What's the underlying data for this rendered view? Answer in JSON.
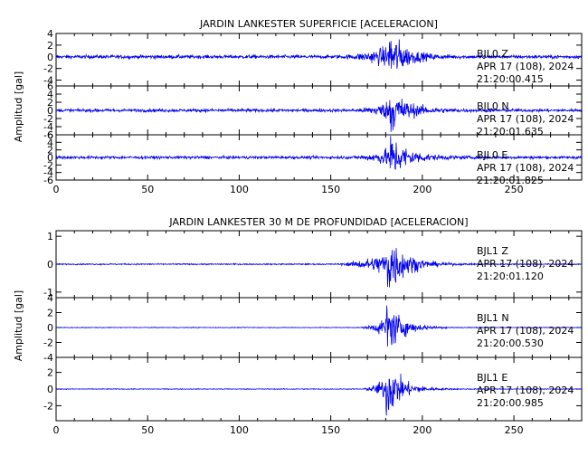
{
  "chart_data": [
    {
      "type": "line",
      "title": "JARDIN LANKESTER SUPERFICIE [ACELERACION]",
      "ylabel": "Amplitud [gal]",
      "xlabel": "",
      "xlim": [
        0,
        287
      ],
      "xticks": [
        "0",
        "50",
        "100",
        "150",
        "200",
        "250"
      ],
      "xtick_values": [
        0,
        50,
        100,
        150,
        200,
        250
      ],
      "panels": [
        {
          "name": "BJL0 Z",
          "station": "BJL0",
          "component": "Z",
          "date": "APR 17 (108), 2024",
          "time": "21:20:00.415",
          "ylim": [
            -5,
            4
          ],
          "yticks": [
            "4",
            "2",
            "0",
            "-2",
            "-4"
          ],
          "ytick_values": [
            4,
            2,
            0,
            -2,
            -4
          ],
          "noise": 0.28,
          "onset": 152,
          "peak_time": 182,
          "peak": 4.5,
          "decay": 8
        },
        {
          "name": "BJL0 N",
          "station": "BJL0",
          "component": "N",
          "date": "APR 17 (108), 2024",
          "time": "21:20:01.635",
          "ylim": [
            -6,
            6
          ],
          "yticks": [
            "6",
            "4",
            "2",
            "0",
            "-2",
            "-4",
            "-6"
          ],
          "ytick_values": [
            6,
            4,
            2,
            0,
            -2,
            -4,
            -6
          ],
          "noise": 0.35,
          "onset": 160,
          "peak_time": 182,
          "peak": 5.5,
          "decay": 9
        },
        {
          "name": "BJL0 E",
          "station": "BJL0",
          "component": "E",
          "date": "APR 17 (108), 2024",
          "time": "21:20:01.825",
          "ylim": [
            -6,
            6
          ],
          "yticks": [
            "6",
            "4",
            "2",
            "0",
            "-2",
            "-4",
            "-6"
          ],
          "ytick_values": [
            6,
            4,
            2,
            0,
            -2,
            -4,
            -6
          ],
          "noise": 0.35,
          "onset": 160,
          "peak_time": 182,
          "peak": 6,
          "decay": 9
        }
      ]
    },
    {
      "type": "line",
      "title": "JARDIN LANKESTER 30 M DE PROFUNDIDAD [ACELERACION]",
      "ylabel": "Amplitud [gal]",
      "xlabel": "",
      "xlim": [
        0,
        287
      ],
      "xticks": [
        "0",
        "50",
        "100",
        "150",
        "200",
        "250"
      ],
      "xtick_values": [
        0,
        50,
        100,
        150,
        200,
        250
      ],
      "panels": [
        {
          "name": "BJL1 Z",
          "station": "BJL1",
          "component": "Z",
          "date": "APR 17 (108), 2024",
          "time": "21:20:01.120",
          "ylim": [
            -1.2,
            1.2
          ],
          "yticks": [
            "1",
            "0",
            "-1"
          ],
          "ytick_values": [
            1,
            0,
            -1
          ],
          "noise": 0.02,
          "onset": 150,
          "peak_time": 181,
          "peak": 1.15,
          "decay": 9
        },
        {
          "name": "BJL1 N",
          "station": "BJL1",
          "component": "N",
          "date": "APR 17 (108), 2024",
          "time": "21:20:00.530",
          "ylim": [
            -4,
            4
          ],
          "yticks": [
            "4",
            "2",
            "0",
            "-2",
            "-4"
          ],
          "ytick_values": [
            4,
            2,
            0,
            -2,
            -4
          ],
          "noise": 0.04,
          "onset": 165,
          "peak_time": 180,
          "peak": 3.8,
          "decay": 8
        },
        {
          "name": "BJL1 E",
          "station": "BJL1",
          "component": "E",
          "date": "APR 17 (108), 2024",
          "time": "21:20:00.985",
          "ylim": [
            -3.8,
            3.8
          ],
          "yticks": [
            "2",
            "0",
            "-2"
          ],
          "ytick_values": [
            2,
            0,
            -2
          ],
          "noise": 0.04,
          "onset": 165,
          "peak_time": 180,
          "peak": 3.6,
          "decay": 8
        }
      ]
    }
  ],
  "colors": {
    "trace": "#0000ee",
    "axis": "#000000",
    "background": "#ffffff"
  }
}
